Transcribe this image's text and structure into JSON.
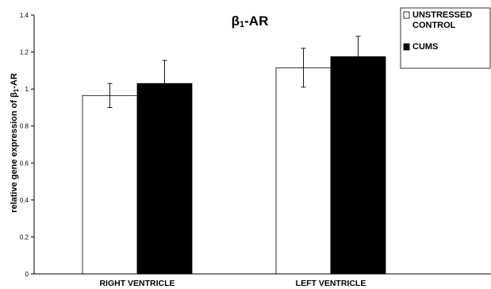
{
  "chart_data": {
    "type": "bar",
    "title": {
      "main": "β",
      "sub": "1",
      "rest": "-AR"
    },
    "ylabel": {
      "main": "relative gene expression of β",
      "sub": "1",
      "rest": "-AR"
    },
    "xlabel": "",
    "categories": [
      "RIGHT VENTRICLE",
      "LEFT VENTRICLE"
    ],
    "ylim": [
      0,
      1.4
    ],
    "yticks": [
      "0",
      "0.2",
      "0.4",
      "0.6",
      "0.8",
      "1",
      "1.2",
      "1.4"
    ],
    "ytick_values": [
      0,
      0.2,
      0.4,
      0.6,
      0.8,
      1,
      1.2,
      1.4
    ],
    "grid": false,
    "legend_position": "top-right",
    "series": [
      {
        "name_lines": [
          "UNSTRESSED",
          "CONTROL"
        ],
        "values": [
          0.965,
          1.115
        ],
        "errors": [
          0.065,
          0.105
        ],
        "fill": "#ffffff",
        "stroke": "#000000"
      },
      {
        "name_lines": [
          "CUMS"
        ],
        "values": [
          1.03,
          1.175
        ],
        "errors": [
          0.125,
          0.11
        ],
        "fill": "#000000",
        "stroke": "#000000"
      }
    ]
  }
}
